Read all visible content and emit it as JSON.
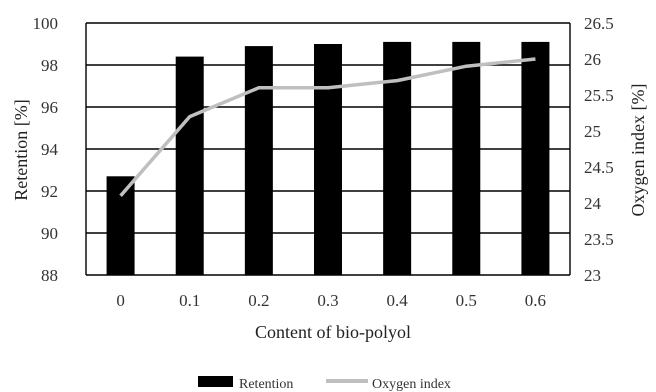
{
  "chart_data": {
    "type": "bar",
    "xlabel": "Content of bio-polyol",
    "ylabel": "Retention [%]",
    "y2label": "Oxygen index [%]",
    "categories": [
      "0",
      "0.1",
      "0.2",
      "0.3",
      "0.4",
      "0.5",
      "0.6"
    ],
    "ylim": [
      88,
      100
    ],
    "y_ticks": [
      88,
      90,
      92,
      94,
      96,
      98,
      100
    ],
    "y2lim": [
      23,
      26.5
    ],
    "y2_ticks": [
      "23",
      "23.5",
      "24",
      "24.5",
      "25",
      "25.5",
      "26",
      "26.5"
    ],
    "grid": true,
    "legend_position": "bottom",
    "series": [
      {
        "name": "Retention",
        "type": "bar",
        "axis": "left",
        "color": "#000000",
        "values": [
          92.7,
          98.4,
          98.9,
          99.0,
          99.1,
          99.1,
          99.1
        ]
      },
      {
        "name": "Oxygen index",
        "type": "line",
        "axis": "right",
        "color": "#bfbfbf",
        "values": [
          24.1,
          25.2,
          25.6,
          25.6,
          25.7,
          25.9,
          26.0
        ]
      }
    ]
  }
}
